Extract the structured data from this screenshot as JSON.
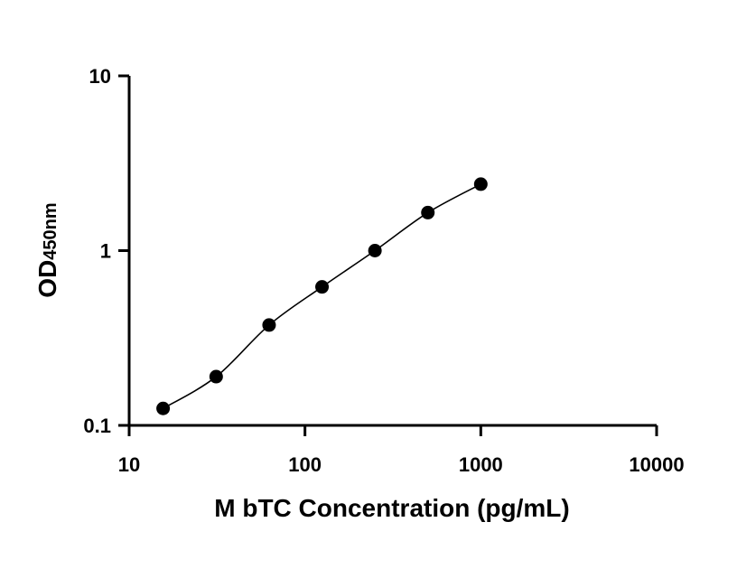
{
  "chart_data": {
    "type": "scatter",
    "title": "",
    "xlabel": "M bTC Concentration (pg/mL)",
    "ylabel_main": "OD",
    "ylabel_sub": "450nm",
    "x_scale": "log",
    "y_scale": "log",
    "xlim": [
      10,
      10000
    ],
    "ylim": [
      0.1,
      10
    ],
    "x_ticks": [
      {
        "value": 10,
        "label": "10"
      },
      {
        "value": 100,
        "label": "100"
      },
      {
        "value": 1000,
        "label": "1000"
      },
      {
        "value": 10000,
        "label": "10000"
      }
    ],
    "y_ticks": [
      {
        "value": 0.1,
        "label": "0.1"
      },
      {
        "value": 1,
        "label": "1"
      },
      {
        "value": 10,
        "label": "10"
      }
    ],
    "grid": false,
    "legend": "none",
    "series": [
      {
        "points": [
          {
            "x": 15.6,
            "y": 0.125
          },
          {
            "x": 31.25,
            "y": 0.19
          },
          {
            "x": 62.5,
            "y": 0.375
          },
          {
            "x": 125,
            "y": 0.62
          },
          {
            "x": 250,
            "y": 1.0
          },
          {
            "x": 500,
            "y": 1.65
          },
          {
            "x": 1000,
            "y": 2.4
          }
        ],
        "has_fit_curve": true,
        "color": "#000000"
      }
    ]
  }
}
